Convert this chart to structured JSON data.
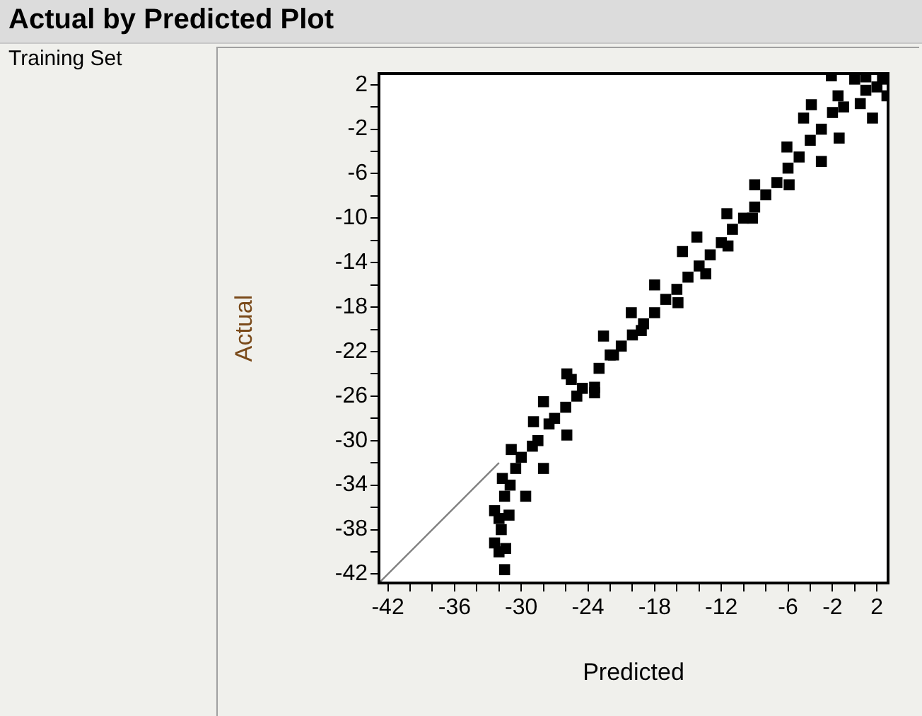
{
  "chart_data": {
    "type": "scatter",
    "title": "Actual by Predicted Plot",
    "xlabel": "Predicted",
    "ylabel": "Actual",
    "annotations": [
      "Training Set"
    ],
    "xlim": [
      -42.8,
      3
    ],
    "ylim": [
      -42.8,
      3
    ],
    "xticks": [
      -42,
      {
        "value": -40,
        "label": null
      },
      {
        "value": -38,
        "label": null
      },
      -36,
      {
        "value": -34,
        "label": null
      },
      {
        "value": -32,
        "label": null
      },
      -30,
      {
        "value": -28,
        "label": null
      },
      {
        "value": -26,
        "label": null
      },
      -24,
      {
        "value": -22,
        "label": null
      },
      {
        "value": -20,
        "label": null
      },
      -18,
      {
        "value": -16,
        "label": null
      },
      {
        "value": -14,
        "label": null
      },
      -12,
      {
        "value": -10,
        "label": null
      },
      {
        "value": -8,
        "label": null
      },
      -6,
      {
        "value": -4,
        "label": null
      },
      -2,
      {
        "value": 0,
        "label": null
      },
      2
    ],
    "yticks": [
      -42,
      {
        "value": -40,
        "label": null
      },
      -38,
      {
        "value": -36,
        "label": null
      },
      -34,
      {
        "value": -32,
        "label": null
      },
      -30,
      {
        "value": -28,
        "label": null
      },
      -26,
      {
        "value": -24,
        "label": null
      },
      -22,
      {
        "value": -20,
        "label": null
      },
      -18,
      {
        "value": -16,
        "label": null
      },
      -14,
      {
        "value": -12,
        "label": null
      },
      -10,
      {
        "value": -8,
        "label": null
      },
      -6,
      {
        "value": -4,
        "label": null
      },
      -2,
      {
        "value": 0,
        "label": null
      },
      2
    ],
    "series": [
      {
        "type": "scatter",
        "color": "#000000",
        "marker": "square",
        "x": [
          -2.1,
          -3.9,
          -4.6,
          -6.1,
          -9,
          -11.5,
          -14.2,
          -15.5,
          -18,
          -20.1,
          -22.6,
          -25.9,
          2.9,
          1.6,
          -1.4,
          -3,
          -5.9,
          -9.2,
          -11.4,
          -13.4,
          -15.9,
          -19.2,
          -21.7,
          -23.4,
          -25.5,
          -28,
          -28.9,
          -30.9,
          -31.7,
          -32.4,
          -32.4,
          -31.5,
          -31.4,
          -31.1,
          -29.6,
          -28,
          -25.9,
          -23.4,
          -31.8,
          -31.5,
          -30.5,
          -29,
          -27.5,
          -26,
          -24.5,
          -23,
          -21,
          -19,
          -17,
          -15,
          -13,
          -11,
          -9,
          -7,
          -5,
          -3,
          -1,
          1,
          2.5,
          0,
          -2,
          -4,
          -6,
          -8,
          -10,
          -12,
          -14,
          -16,
          -18,
          -20,
          -22,
          -25,
          -27,
          -28.5,
          -30,
          -31,
          -32,
          -32,
          1,
          2,
          -1.5,
          0.5
        ],
        "values": [
          2.8,
          0.2,
          -1,
          -3.6,
          -7,
          -9.6,
          -11.7,
          -13,
          -16,
          -18.5,
          -20.6,
          -24,
          1,
          -1,
          -2.8,
          -4.9,
          -7,
          -10,
          -12.5,
          -15,
          -17.6,
          -20.1,
          -22.3,
          -25.2,
          -24.5,
          -26.5,
          -28.3,
          -30.8,
          -33.4,
          -36.3,
          -39.2,
          -41.6,
          -39.7,
          -36.7,
          -35,
          -32.5,
          -29.5,
          -25.7,
          -38,
          -35,
          -32.5,
          -30.5,
          -28.5,
          -27,
          -25.3,
          -23.5,
          -21.5,
          -19.5,
          -17.3,
          -15.3,
          -13.3,
          -11,
          -9,
          -6.8,
          -4.5,
          -2,
          0,
          1.5,
          2.5,
          2.5,
          -0.5,
          -3,
          -5.5,
          -7.9,
          -10,
          -12.2,
          -14.3,
          -16.4,
          -18.5,
          -20.5,
          -22.3,
          -26,
          -28,
          -30,
          -31.5,
          -34,
          -37,
          -40,
          2.7,
          1.8,
          1,
          0.3
        ]
      },
      {
        "type": "line",
        "color": "#808080",
        "marker": "none",
        "x": [
          -42.8,
          -32
        ],
        "values": [
          -42.8,
          -32
        ]
      }
    ]
  }
}
